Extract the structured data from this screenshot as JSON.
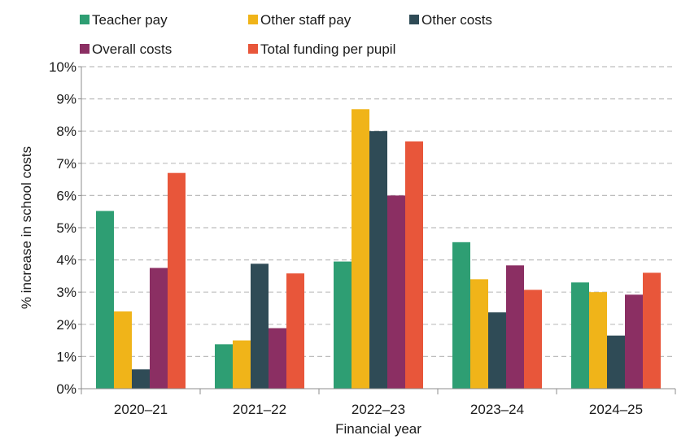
{
  "chart_data": {
    "type": "bar",
    "title": "",
    "xlabel": "Financial year",
    "ylabel": "% increase in school costs",
    "categories": [
      "2020–21",
      "2021–22",
      "2022–23",
      "2023–24",
      "2024–25"
    ],
    "ylim": [
      0,
      10
    ],
    "y_ticks": [
      "0%",
      "1%",
      "2%",
      "3%",
      "4%",
      "5%",
      "6%",
      "7%",
      "8%",
      "9%",
      "10%"
    ],
    "grid": "horizontal dashed",
    "legend_position": "top",
    "series": [
      {
        "name": "Teacher pay",
        "color": "#2e9e73",
        "values": [
          5.52,
          1.38,
          3.95,
          4.55,
          3.3
        ]
      },
      {
        "name": "Other staff pay",
        "color": "#f0b419",
        "values": [
          2.4,
          1.5,
          8.68,
          3.4,
          3.0
        ]
      },
      {
        "name": "Other costs",
        "color": "#2f4b56",
        "values": [
          0.6,
          3.88,
          8.0,
          2.37,
          1.65
        ]
      },
      {
        "name": "Overall costs",
        "color": "#8b2f63",
        "values": [
          3.75,
          1.88,
          6.0,
          3.83,
          2.92
        ]
      },
      {
        "name": "Total funding per pupil",
        "color": "#e8563a",
        "values": [
          6.7,
          3.58,
          7.68,
          3.07,
          3.6
        ]
      }
    ]
  }
}
